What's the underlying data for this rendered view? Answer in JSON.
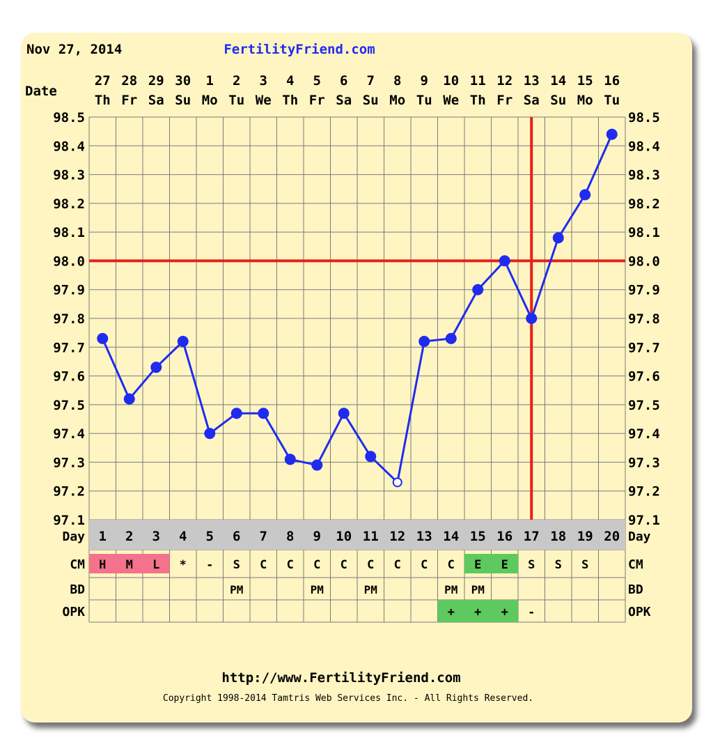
{
  "header": {
    "date": "Nov 27, 2014",
    "site": "FertilityFriend.com"
  },
  "footer": {
    "url": "http://www.FertilityFriend.com",
    "copyright": "Copyright 1998-2014 Tamtris Web Services Inc. - All Rights Reserved."
  },
  "colors": {
    "background": "#fff5c2",
    "grid": "#7a7a7a",
    "line": "#1f2bf0",
    "coverline": "#e8211b",
    "period_cell": "#f5728c",
    "fertile_cell": "#5ec95e",
    "day_row": "#c8c8c8"
  },
  "chart_data": {
    "type": "line",
    "row_labels": {
      "date": "Date",
      "day": "Day",
      "cm": "CM",
      "bd": "BD",
      "opk": "OPK"
    },
    "dates": [
      "27",
      "28",
      "29",
      "30",
      "1",
      "2",
      "3",
      "4",
      "5",
      "6",
      "7",
      "8",
      "9",
      "10",
      "11",
      "12",
      "13",
      "14",
      "15",
      "16"
    ],
    "weekdays": [
      "Th",
      "Fr",
      "Sa",
      "Su",
      "Mo",
      "Tu",
      "We",
      "Th",
      "Fr",
      "Sa",
      "Su",
      "Mo",
      "Tu",
      "We",
      "Th",
      "Fr",
      "Sa",
      "Su",
      "Mo",
      "Tu"
    ],
    "days": [
      "1",
      "2",
      "3",
      "4",
      "5",
      "6",
      "7",
      "8",
      "9",
      "10",
      "11",
      "12",
      "13",
      "14",
      "15",
      "16",
      "17",
      "18",
      "19",
      "20"
    ],
    "temps": [
      97.73,
      97.52,
      97.63,
      97.72,
      97.4,
      97.47,
      97.47,
      97.31,
      97.29,
      97.47,
      97.32,
      97.23,
      97.72,
      97.73,
      97.9,
      98.0,
      97.8,
      98.08,
      98.23,
      98.44
    ],
    "open_points_day": [
      12
    ],
    "y_ticks": [
      "98.5",
      "98.4",
      "98.3",
      "98.2",
      "98.1",
      "98.0",
      "97.9",
      "97.8",
      "97.7",
      "97.6",
      "97.5",
      "97.4",
      "97.3",
      "97.2",
      "97.1"
    ],
    "ylim": [
      97.1,
      98.5
    ],
    "coverline": 98.0,
    "ovulation_day": 17,
    "cm": [
      "H",
      "M",
      "L",
      "*",
      "-",
      "S",
      "C",
      "C",
      "C",
      "C",
      "C",
      "C",
      "C",
      "C",
      "E",
      "E",
      "S",
      "S",
      "S",
      ""
    ],
    "cm_types": [
      "period",
      "period",
      "period",
      "",
      "",
      "",
      "",
      "",
      "",
      "",
      "",
      "",
      "",
      "",
      "fertile",
      "fertile",
      "",
      "",
      "",
      ""
    ],
    "bd": [
      "",
      "",
      "",
      "",
      "",
      "PM",
      "",
      "",
      "PM",
      "",
      "PM",
      "",
      "",
      "PM",
      "PM",
      "",
      "",
      "",
      "",
      ""
    ],
    "opk": [
      "",
      "",
      "",
      "",
      "",
      "",
      "",
      "",
      "",
      "",
      "",
      "",
      "",
      "+",
      "+",
      "+",
      "-",
      "",
      "",
      ""
    ],
    "opk_types": [
      "",
      "",
      "",
      "",
      "",
      "",
      "",
      "",
      "",
      "",
      "",
      "",
      "",
      "fertile",
      "fertile",
      "fertile",
      "",
      "",
      "",
      ""
    ]
  }
}
